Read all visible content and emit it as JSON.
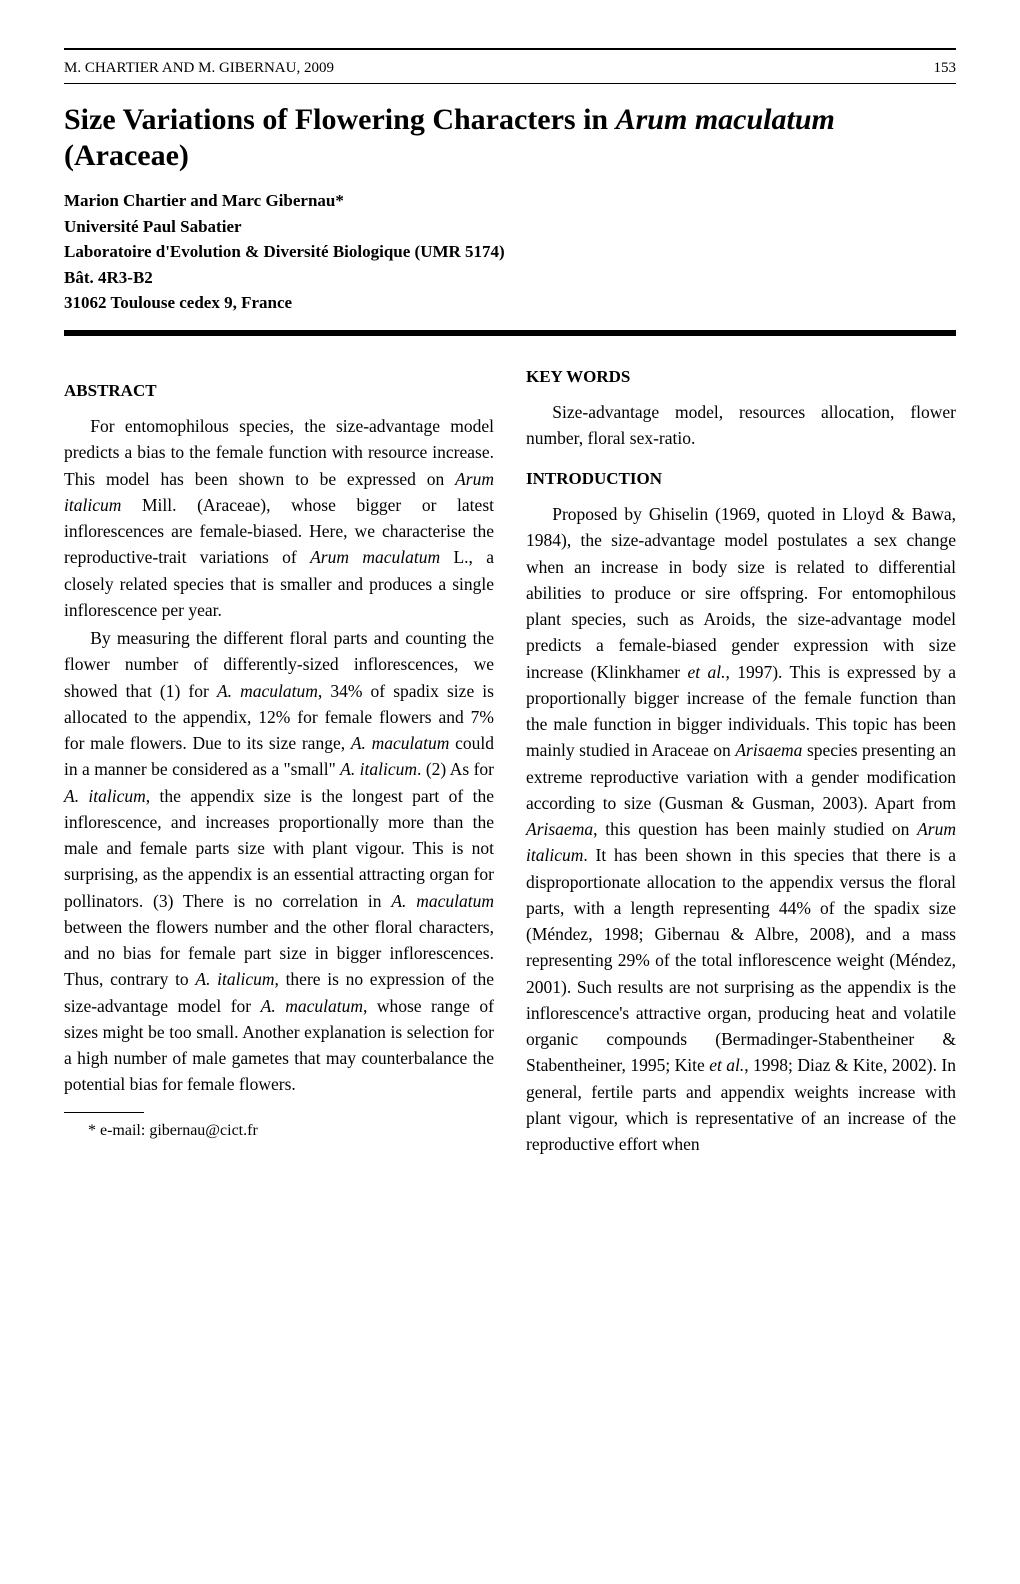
{
  "page": {
    "running_head_left": "M. CHARTIER AND M. GIBERNAU, 2009",
    "page_number": "153"
  },
  "title": {
    "prefix": "Size Variations of Flowering Characters in ",
    "species": "Arum maculatum",
    "suffix": " (Araceae)"
  },
  "authors": {
    "line1": "Marion Chartier and Marc Gibernau*",
    "line2": "Université Paul Sabatier",
    "line3": "Laboratoire d'Evolution & Diversité Biologique (UMR 5174)",
    "line4": "Bât. 4R3-B2",
    "line5": "31062 Toulouse cedex 9, France"
  },
  "heads": {
    "abstract": "ABSTRACT",
    "keywords": "KEY WORDS",
    "introduction": "INTRODUCTION"
  },
  "abstract": {
    "p1_a": "For entomophilous species, the size-advantage model predicts a bias to the female function with resource increase. This model has been shown to be expressed on ",
    "p1_b": "Arum italicum",
    "p1_c": " Mill. (Araceae), whose bigger or latest inflorescences are female-biased. Here, we characterise the reproductive-trait variations of ",
    "p1_d": "Arum maculatum",
    "p1_e": " L., a closely related species that is smaller and produces a single inflorescence per year.",
    "p2_a": "By measuring the different floral parts and counting the flower number of differently-sized inflorescences, we showed that (1) for ",
    "p2_b": "A. maculatum",
    "p2_c": ", 34% of spadix size is allocated to the appendix, 12% for female flowers and 7% for male flowers. Due to its size range, ",
    "p2_d": "A. maculatum",
    "p2_e": " could in a manner be considered as a \"small\" ",
    "p2_f": "A. italicum",
    "p2_g": ". (2) As for ",
    "p2_h": "A. italicum",
    "p2_i": ", the appendix size is the longest part of the inflorescence, and increases proportionally more than the male and female parts size with plant vigour. This is not surprising, as the appendix is an essential attracting organ for pollinators. (3) There is no correlation in ",
    "p2_j": "A. maculatum",
    "p2_k": " between the flowers number and the other floral characters, and no bias for female part size in bigger inflorescences. Thus, contrary to ",
    "p2_l": "A. italicum",
    "p2_m": ", there is no expression of the size-advantage model for ",
    "p2_n": "A. maculatum",
    "p2_o": ", whose range of sizes might be too small. Another explanation is selection for a high number of male gametes that may counterbalance the potential bias for female flowers."
  },
  "keywords": {
    "text": "Size-advantage model, resources allocation, flower number, floral sex-ratio."
  },
  "introduction": {
    "p1_a": "Proposed by Ghiselin (1969, quoted in Lloyd & Bawa, 1984), the size-advantage model postulates a sex change when an increase in body size is related to differential abilities to produce or sire offspring. For entomophilous plant species, such as Aroids, the size-advantage model predicts a female-biased gender expression with size increase (Klinkhamer ",
    "p1_b": "et al.",
    "p1_c": ", 1997). This is expressed by a proportionally bigger increase of the female function than the male function in bigger individuals. This topic has been mainly studied in Araceae on ",
    "p1_d": "Arisaema",
    "p1_e": " species presenting an extreme reproductive variation with a gender modification according to size (Gusman & Gusman, 2003). Apart from ",
    "p1_f": "Arisaema",
    "p1_g": ", this question has been mainly studied on ",
    "p1_h": "Arum italicum",
    "p1_i": ". It has been shown in this species that there is a disproportionate allocation to the appendix versus the floral parts, with a length representing 44% of the spadix size (Méndez, 1998; Gibernau & Albre, 2008), and a mass representing 29% of the total inflorescence weight (Méndez, 2001). Such results are not surprising as the appendix is the inflorescence's attractive organ, producing heat and volatile organic compounds (Bermadinger-Stabentheiner & Stabentheiner, 1995; Kite ",
    "p1_j": "et al.",
    "p1_k": ", 1998; Diaz & Kite, 2002). In general, fertile parts and appendix weights increase with plant vigour, which is representative of an increase of the reproductive effort when"
  },
  "footnote": {
    "text": "* e-mail: gibernau@cict.fr"
  }
}
